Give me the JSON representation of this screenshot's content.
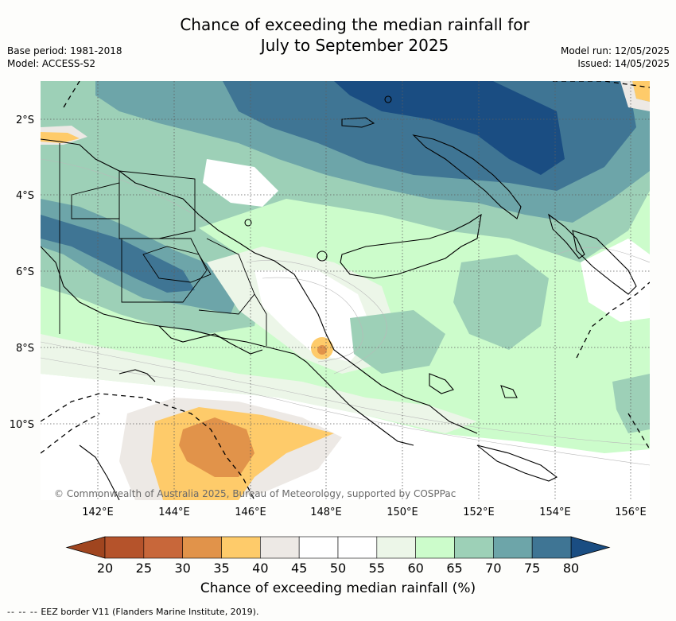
{
  "title": {
    "line1": "Chance of exceeding the median rainfall for",
    "line2": "July to September 2025"
  },
  "meta_left": {
    "base_period": "Base period: 1981-2018",
    "model": "Model: ACCESS-S2"
  },
  "meta_right": {
    "model_run": "Model run: 12/05/2025",
    "issued": "Issued: 14/05/2025"
  },
  "map": {
    "lat_labels": [
      "2°S",
      "4°S",
      "6°S",
      "8°S",
      "10°S"
    ],
    "lon_labels": [
      "142°E",
      "144°E",
      "146°E",
      "148°E",
      "150°E",
      "152°E",
      "154°E",
      "156°E"
    ],
    "copyright": "© Commonwealth of Australia 2025, Bureau of Meteorology, supported by COSPPac"
  },
  "colorbar": {
    "ticks": [
      "20",
      "25",
      "30",
      "35",
      "40",
      "45",
      "50",
      "55",
      "60",
      "65",
      "70",
      "75",
      "80"
    ],
    "colors": [
      "#b5532b",
      "#c8673a",
      "#e1934a",
      "#fecb6a",
      "#ede9e5",
      "#ffffff",
      "#ffffff",
      "#ecf6e8",
      "#ccfccb",
      "#9dd0b7",
      "#6da5a9",
      "#3f7594"
    ],
    "under_color": "#a0451f",
    "over_color": "#1a4d82",
    "label": "Chance of exceeding median rainfall (%)"
  },
  "footer": {
    "legend_symbol": "-- -- --",
    "legend_text": "EEZ border V11 (Flanders Marine Institute, 2019)."
  }
}
